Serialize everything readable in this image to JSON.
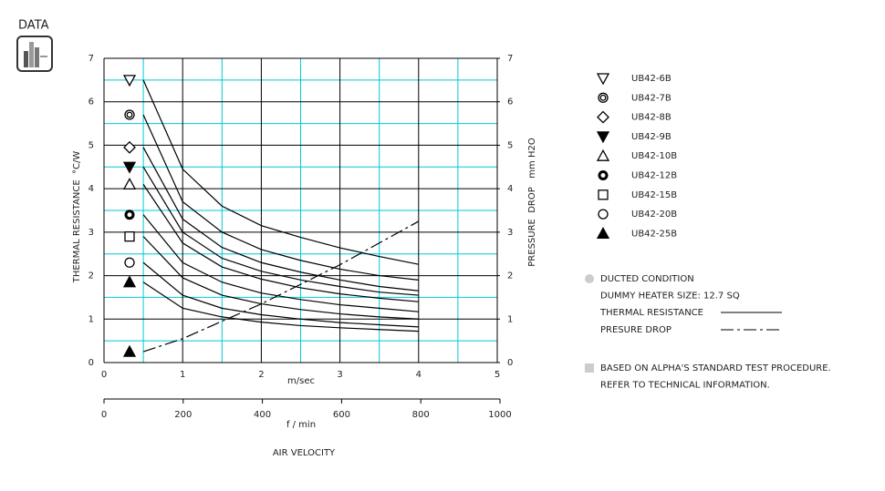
{
  "header": "DATA",
  "chart_data": {
    "type": "line",
    "color": "#000",
    "grid_color": "#00c8d8",
    "minor_grid": true,
    "x": [
      0.5,
      1,
      1.5,
      2,
      2.5,
      3,
      3.5,
      4
    ],
    "xlim": [
      0,
      5
    ],
    "xticks": [
      0,
      1,
      2,
      3,
      4,
      5
    ],
    "x_label": "m/sec",
    "x2lim": [
      0,
      1000
    ],
    "x2ticks": [
      0,
      200,
      400,
      600,
      800,
      1000
    ],
    "x2_label": "f / min",
    "x_title": "AIR VELOCITY",
    "ylim": [
      0,
      7
    ],
    "yticks": [
      0,
      1,
      2,
      3,
      4,
      5,
      6,
      7
    ],
    "y_label": "THERMAL RESISTANCE  °C/W",
    "y2lim": [
      0,
      7
    ],
    "y2ticks": [
      0,
      1,
      2,
      3,
      4,
      5,
      6,
      7
    ],
    "y2_label": "PRESSURE  DROP   mm H2O",
    "series": [
      {
        "name": "UB42-6B",
        "marker": "triangle-down-open",
        "values": [
          6.5,
          4.45,
          3.6,
          3.15,
          2.88,
          2.64,
          2.44,
          2.26
        ]
      },
      {
        "name": "UB42-7B",
        "marker": "double-circle",
        "values": [
          5.7,
          3.7,
          3.0,
          2.6,
          2.35,
          2.15,
          2.0,
          1.9
        ]
      },
      {
        "name": "UB42-8B",
        "marker": "diamond-open",
        "values": [
          4.95,
          3.3,
          2.65,
          2.3,
          2.08,
          1.9,
          1.75,
          1.65
        ]
      },
      {
        "name": "UB42-9B",
        "marker": "triangle-down",
        "values": [
          4.5,
          3.0,
          2.4,
          2.1,
          1.9,
          1.75,
          1.62,
          1.55
        ]
      },
      {
        "name": "UB42-10B",
        "marker": "triangle-open",
        "values": [
          4.1,
          2.75,
          2.2,
          1.92,
          1.72,
          1.58,
          1.48,
          1.4
        ]
      },
      {
        "name": "UB42-12B",
        "marker": "circle-thick",
        "values": [
          3.4,
          2.3,
          1.85,
          1.6,
          1.45,
          1.33,
          1.25,
          1.17
        ]
      },
      {
        "name": "UB42-15B",
        "marker": "square-open",
        "values": [
          2.9,
          1.95,
          1.55,
          1.35,
          1.22,
          1.12,
          1.05,
          1.0
        ]
      },
      {
        "name": "UB42-20B",
        "marker": "circle-open",
        "values": [
          2.3,
          1.55,
          1.25,
          1.1,
          1.0,
          0.92,
          0.87,
          0.82
        ]
      },
      {
        "name": "UB42-25B",
        "marker": "triangle",
        "values": [
          1.85,
          1.25,
          1.05,
          0.93,
          0.85,
          0.8,
          0.76,
          0.72
        ]
      }
    ],
    "pressure": {
      "name": "PRESURE DROP",
      "axis": "y2",
      "marker": "triangle",
      "values": [
        0.25,
        0.55,
        0.95,
        1.35,
        1.8,
        2.25,
        2.75,
        3.25
      ]
    },
    "notes": [
      "DUCTED CONDITION",
      "DUMMY HEATER SIZE: 12.7 SQ",
      "THERMAL RESISTANCE"
    ],
    "info": [
      "BASED ON ALPHA'S STANDARD TEST PROCEDURE.",
      "REFER TO TECHNICAL INFORMATION."
    ]
  }
}
